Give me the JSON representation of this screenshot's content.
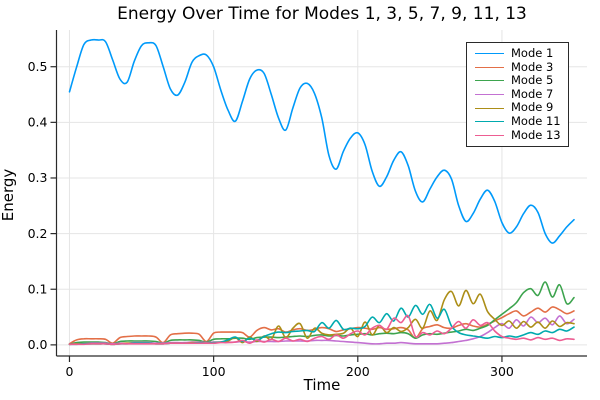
{
  "chart_data": {
    "type": "line",
    "title": "Energy Over Time for Modes 1, 3, 5, 7, 9, 11, 13",
    "xlabel": "Time",
    "ylabel": "Energy",
    "grid": true,
    "legend_position": "top-right",
    "xlim": [
      -9,
      359
    ],
    "ylim": [
      -0.02,
      0.566
    ],
    "x_ticks": [
      0,
      100,
      200,
      300
    ],
    "x_tick_labels": [
      "0",
      "100",
      "200",
      "300"
    ],
    "y_ticks": [
      0.0,
      0.1,
      0.2,
      0.3,
      0.4,
      0.5
    ],
    "y_tick_labels": [
      "0.0",
      "0.1",
      "0.2",
      "0.3",
      "0.4",
      "0.5"
    ],
    "style": {
      "background": "#FFFFFF",
      "grid_color": "#E5E5E5",
      "axis_color": "#2A2A2A",
      "text_color": "#000000",
      "legend_border_color": "#2A2A2A"
    },
    "x": [
      0,
      5,
      10,
      15,
      20,
      25,
      30,
      35,
      40,
      45,
      50,
      55,
      60,
      65,
      70,
      75,
      80,
      85,
      90,
      95,
      100,
      105,
      110,
      115,
      120,
      125,
      130,
      135,
      140,
      145,
      150,
      155,
      160,
      165,
      170,
      175,
      180,
      185,
      190,
      195,
      200,
      205,
      210,
      215,
      220,
      225,
      230,
      235,
      240,
      245,
      250,
      255,
      260,
      265,
      270,
      275,
      280,
      285,
      290,
      295,
      300,
      305,
      310,
      315,
      320,
      325,
      330,
      335,
      340,
      345,
      350
    ],
    "series": [
      {
        "name": "Mode 1",
        "color": "#009AFA",
        "values": [
          0.455,
          0.5,
          0.54,
          0.548,
          0.548,
          0.545,
          0.512,
          0.478,
          0.472,
          0.51,
          0.538,
          0.543,
          0.538,
          0.5,
          0.46,
          0.449,
          0.472,
          0.508,
          0.52,
          0.521,
          0.5,
          0.458,
          0.422,
          0.402,
          0.438,
          0.478,
          0.494,
          0.488,
          0.45,
          0.408,
          0.386,
          0.426,
          0.462,
          0.47,
          0.452,
          0.408,
          0.34,
          0.316,
          0.348,
          0.372,
          0.381,
          0.36,
          0.312,
          0.285,
          0.302,
          0.332,
          0.347,
          0.322,
          0.276,
          0.257,
          0.28,
          0.302,
          0.314,
          0.298,
          0.25,
          0.222,
          0.236,
          0.262,
          0.278,
          0.258,
          0.22,
          0.201,
          0.212,
          0.236,
          0.251,
          0.238,
          0.2,
          0.183,
          0.196,
          0.212,
          0.225
        ]
      },
      {
        "name": "Mode 3",
        "color": "#E36F47",
        "values": [
          0.002,
          0.009,
          0.011,
          0.011,
          0.011,
          0.01,
          0.003,
          0.013,
          0.015,
          0.016,
          0.016,
          0.016,
          0.014,
          0.004,
          0.018,
          0.02,
          0.021,
          0.021,
          0.019,
          0.006,
          0.021,
          0.023,
          0.023,
          0.023,
          0.022,
          0.014,
          0.026,
          0.031,
          0.027,
          0.029,
          0.023,
          0.027,
          0.029,
          0.026,
          0.028,
          0.031,
          0.029,
          0.024,
          0.027,
          0.029,
          0.031,
          0.03,
          0.028,
          0.031,
          0.028,
          0.029,
          0.031,
          0.027,
          0.012,
          0.029,
          0.033,
          0.036,
          0.031,
          0.03,
          0.035,
          0.038,
          0.034,
          0.032,
          0.037,
          0.043,
          0.049,
          0.056,
          0.061,
          0.052,
          0.059,
          0.066,
          0.059,
          0.068,
          0.063,
          0.056,
          0.061
        ]
      },
      {
        "name": "Mode 5",
        "color": "#3DA44E",
        "values": [
          0.001,
          0.004,
          0.005,
          0.005,
          0.005,
          0.004,
          0.002,
          0.006,
          0.007,
          0.007,
          0.007,
          0.007,
          0.006,
          0.003,
          0.008,
          0.009,
          0.009,
          0.009,
          0.008,
          0.005,
          0.01,
          0.011,
          0.011,
          0.012,
          0.012,
          0.01,
          0.013,
          0.014,
          0.014,
          0.013,
          0.014,
          0.015,
          0.016,
          0.015,
          0.017,
          0.018,
          0.016,
          0.017,
          0.016,
          0.018,
          0.019,
          0.02,
          0.018,
          0.02,
          0.021,
          0.02,
          0.022,
          0.02,
          0.012,
          0.018,
          0.02,
          0.019,
          0.021,
          0.023,
          0.025,
          0.028,
          0.026,
          0.03,
          0.035,
          0.045,
          0.055,
          0.065,
          0.076,
          0.094,
          0.101,
          0.089,
          0.113,
          0.086,
          0.108,
          0.074,
          0.085
        ]
      },
      {
        "name": "Mode 7",
        "color": "#C371D2",
        "values": [
          0.001,
          0.002,
          0.002,
          0.003,
          0.003,
          0.003,
          0.002,
          0.003,
          0.003,
          0.004,
          0.004,
          0.004,
          0.003,
          0.003,
          0.004,
          0.004,
          0.004,
          0.005,
          0.005,
          0.004,
          0.005,
          0.005,
          0.005,
          0.005,
          0.006,
          0.005,
          0.006,
          0.006,
          0.006,
          0.006,
          0.007,
          0.007,
          0.007,
          0.007,
          0.008,
          0.008,
          0.008,
          0.007,
          0.006,
          0.005,
          0.004,
          0.003,
          0.002,
          0.002,
          0.003,
          0.003,
          0.004,
          0.003,
          0.002,
          0.002,
          0.002,
          0.002,
          0.003,
          0.004,
          0.006,
          0.008,
          0.011,
          0.015,
          0.022,
          0.031,
          0.038,
          0.03,
          0.045,
          0.034,
          0.05,
          0.04,
          0.048,
          0.036,
          0.052,
          0.038,
          0.046
        ]
      },
      {
        "name": "Mode 9",
        "color": "#AC8E17",
        "values": [
          0.001,
          0.002,
          0.002,
          0.002,
          0.002,
          0.002,
          0.001,
          0.002,
          0.003,
          0.003,
          0.003,
          0.003,
          0.002,
          0.002,
          0.003,
          0.003,
          0.003,
          0.004,
          0.004,
          0.003,
          0.004,
          0.005,
          0.007,
          0.013,
          0.004,
          0.014,
          0.006,
          0.016,
          0.01,
          0.034,
          0.013,
          0.03,
          0.038,
          0.012,
          0.03,
          0.021,
          0.018,
          0.019,
          0.021,
          0.03,
          0.015,
          0.041,
          0.018,
          0.035,
          0.022,
          0.031,
          0.024,
          0.031,
          0.046,
          0.03,
          0.061,
          0.044,
          0.081,
          0.096,
          0.07,
          0.098,
          0.074,
          0.091,
          0.06,
          0.046,
          0.035,
          0.043,
          0.03,
          0.042,
          0.032,
          0.041,
          0.03,
          0.043,
          0.033,
          0.04,
          0.038
        ]
      },
      {
        "name": "Mode 11",
        "color": "#00AAAE",
        "values": [
          0.001,
          0.001,
          0.002,
          0.002,
          0.002,
          0.002,
          0.001,
          0.002,
          0.002,
          0.003,
          0.003,
          0.003,
          0.002,
          0.002,
          0.003,
          0.003,
          0.003,
          0.003,
          0.004,
          0.003,
          0.004,
          0.005,
          0.009,
          0.014,
          0.006,
          0.012,
          0.008,
          0.015,
          0.02,
          0.023,
          0.022,
          0.024,
          0.025,
          0.026,
          0.024,
          0.04,
          0.03,
          0.044,
          0.028,
          0.03,
          0.029,
          0.033,
          0.05,
          0.04,
          0.056,
          0.043,
          0.066,
          0.05,
          0.071,
          0.055,
          0.073,
          0.048,
          0.064,
          0.034,
          0.022,
          0.018,
          0.016,
          0.014,
          0.012,
          0.015,
          0.013,
          0.016,
          0.014,
          0.018,
          0.022,
          0.019,
          0.025,
          0.022,
          0.028,
          0.025,
          0.032
        ]
      },
      {
        "name": "Mode 13",
        "color": "#ED5D92",
        "values": [
          0.001,
          0.001,
          0.001,
          0.002,
          0.002,
          0.002,
          0.001,
          0.002,
          0.002,
          0.002,
          0.002,
          0.002,
          0.002,
          0.002,
          0.003,
          0.003,
          0.003,
          0.003,
          0.003,
          0.003,
          0.003,
          0.004,
          0.004,
          0.005,
          0.008,
          0.003,
          0.009,
          0.005,
          0.01,
          0.006,
          0.012,
          0.007,
          0.01,
          0.006,
          0.012,
          0.015,
          0.01,
          0.018,
          0.012,
          0.02,
          0.025,
          0.018,
          0.03,
          0.035,
          0.028,
          0.048,
          0.04,
          0.052,
          0.015,
          0.022,
          0.018,
          0.025,
          0.02,
          0.03,
          0.042,
          0.03,
          0.045,
          0.035,
          0.04,
          0.025,
          0.015,
          0.012,
          0.01,
          0.012,
          0.009,
          0.013,
          0.01,
          0.012,
          0.008,
          0.011,
          0.01
        ]
      }
    ]
  }
}
